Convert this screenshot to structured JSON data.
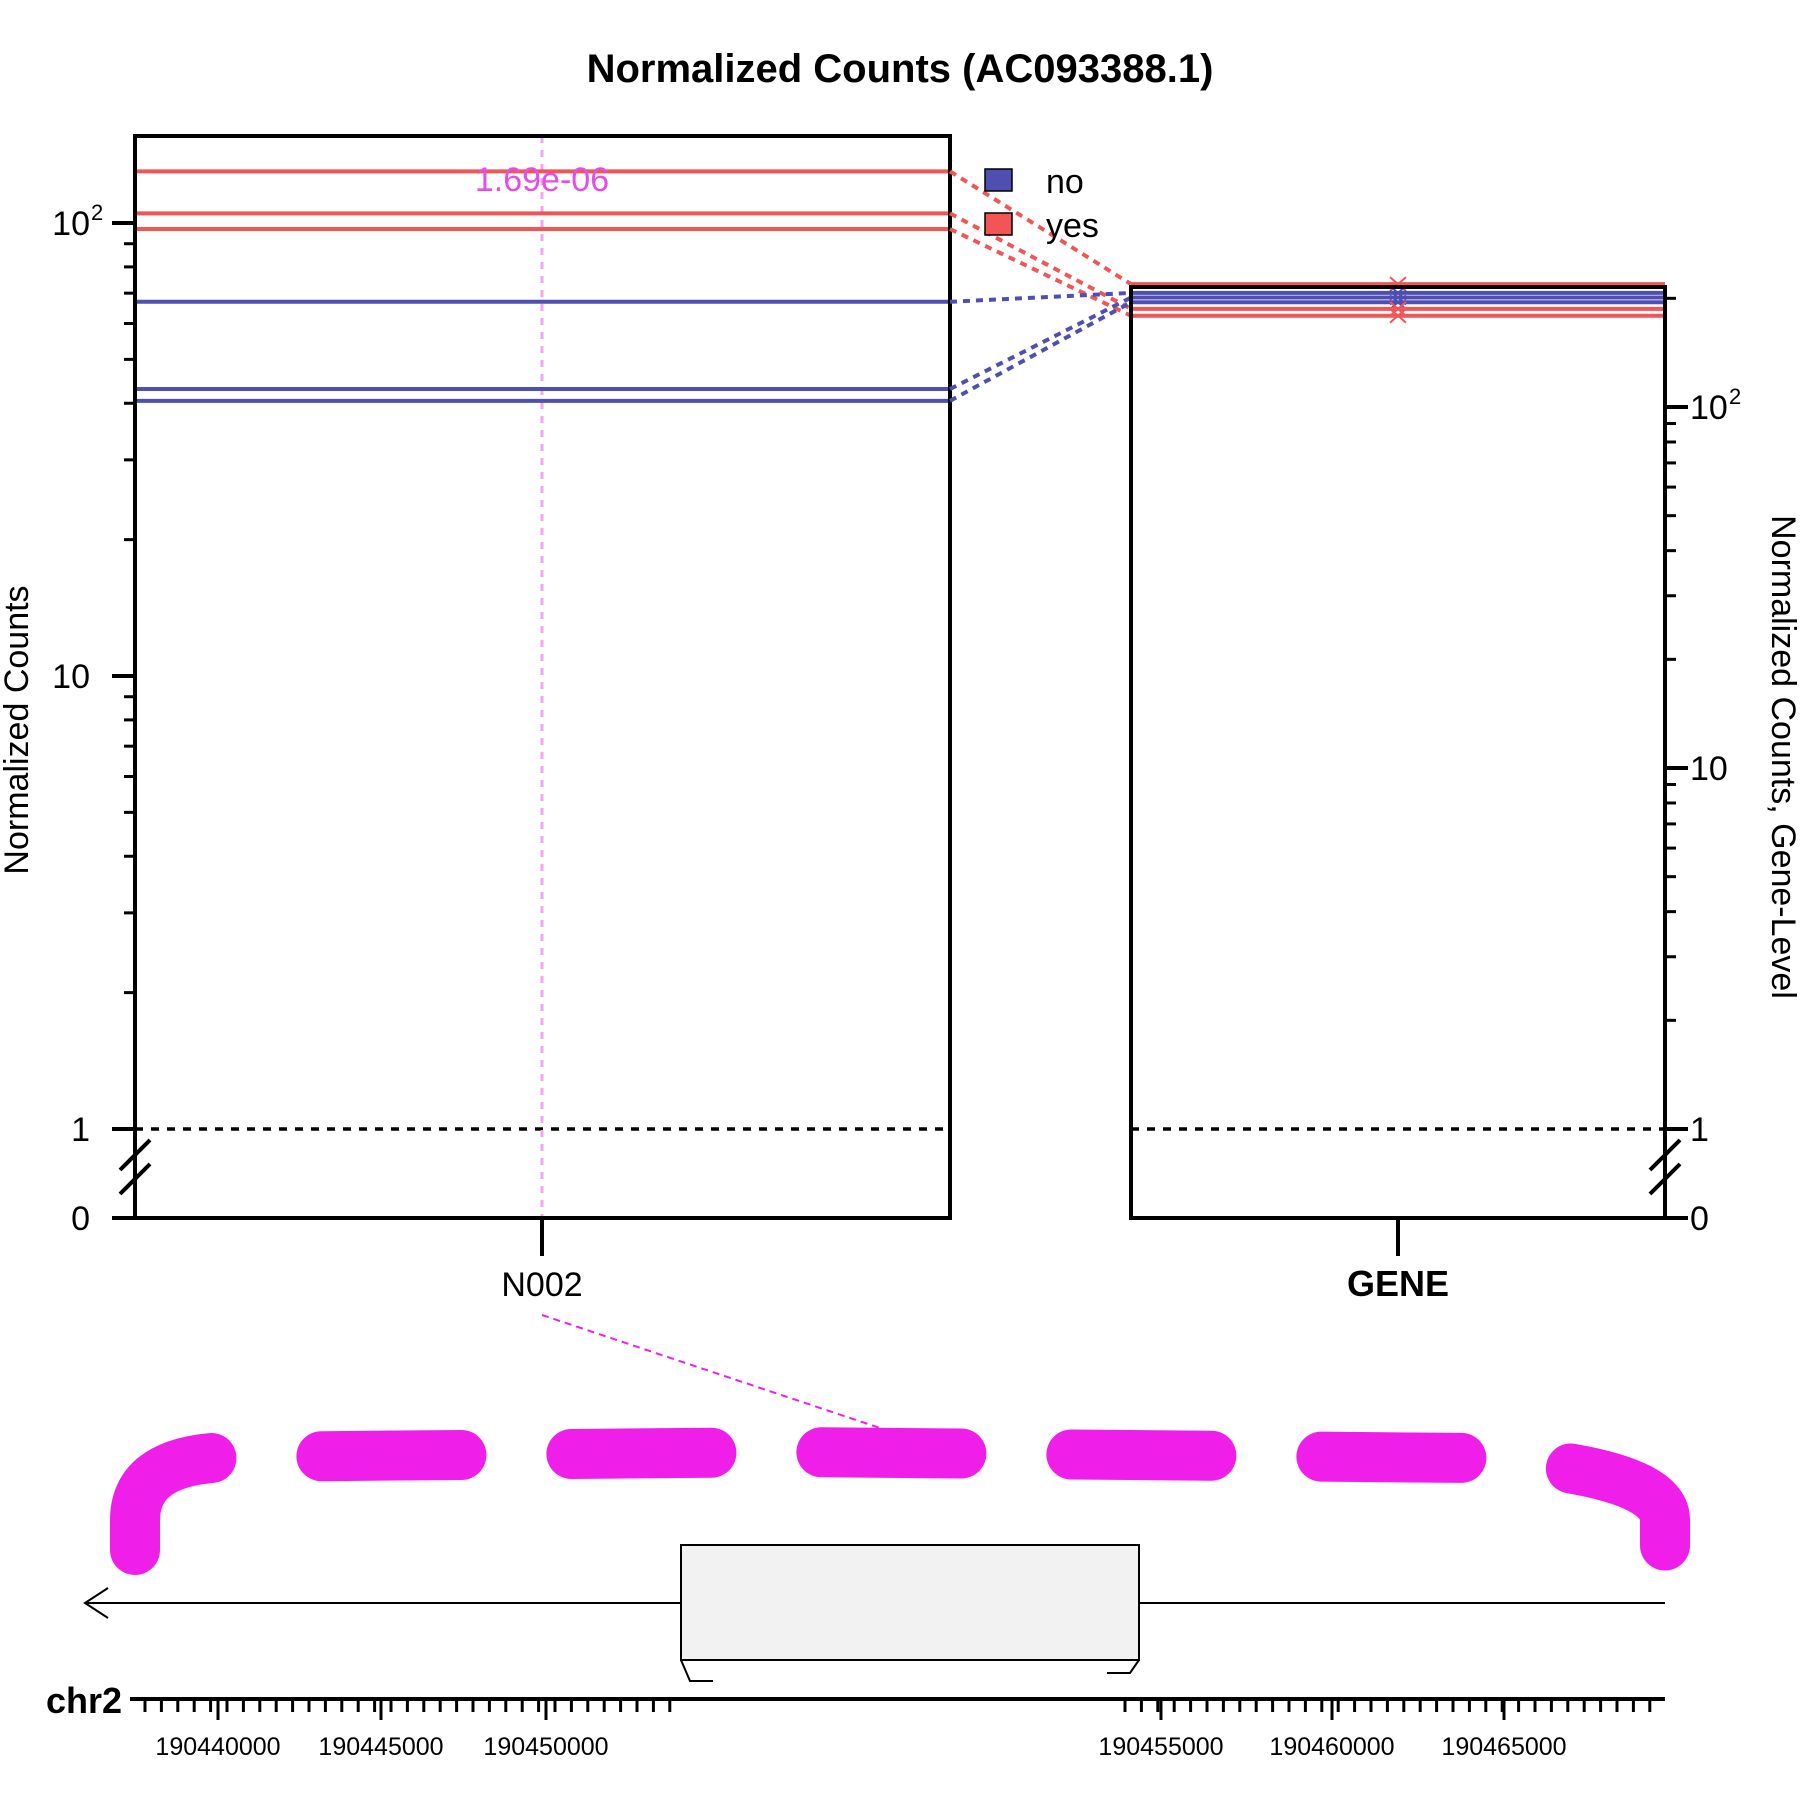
{
  "chart_data": {
    "type": "line",
    "title": "Normalized Counts (AC093388.1)",
    "panels": [
      {
        "name": "junction",
        "ylabel": "Normalized Counts",
        "y_scale": "log",
        "ylim": [
          0,
          170
        ],
        "y_ticks": [
          {
            "value": 0,
            "label": "0"
          },
          {
            "value": 1,
            "label": "1"
          },
          {
            "value": 10,
            "label": "10"
          },
          {
            "value": 100,
            "label": "10",
            "sup": "2"
          }
        ],
        "categories": [
          "N002"
        ],
        "annotation": "1.69e-06",
        "series": [
          {
            "group": "yes",
            "value": 130
          },
          {
            "group": "yes",
            "value": 105
          },
          {
            "group": "yes",
            "value": 97
          },
          {
            "group": "no",
            "value": 67
          },
          {
            "group": "no",
            "value": 43
          },
          {
            "group": "no",
            "value": 40.5
          }
        ]
      },
      {
        "name": "gene",
        "ylabel": "Normalized Counts, Gene-Level",
        "y_scale": "log",
        "ylim": [
          0,
          290
        ],
        "y_ticks": [
          {
            "value": 0,
            "label": "0"
          },
          {
            "value": 1,
            "label": "1"
          },
          {
            "value": 10,
            "label": "10"
          },
          {
            "value": 100,
            "label": "10",
            "sup": "2"
          }
        ],
        "categories": [
          "GENE"
        ],
        "series": [
          {
            "group": "yes",
            "value": 219
          },
          {
            "group": "no",
            "value": 207
          },
          {
            "group": "no",
            "value": 201
          },
          {
            "group": "no",
            "value": 195
          },
          {
            "group": "yes",
            "value": 187
          },
          {
            "group": "yes",
            "value": 179
          }
        ]
      }
    ],
    "legend": {
      "placement": "top-center",
      "entries": [
        {
          "label": "no",
          "color": "#4f4fb2"
        },
        {
          "label": "yes",
          "color": "#f25555"
        }
      ]
    },
    "colors": {
      "no": "#4f4fb2",
      "yes": "#f25555",
      "annotation": "#e64ce6",
      "junction_arc": "#f01ee9"
    },
    "genome_track": {
      "chromosome": "chr2",
      "strand": "-",
      "ticks": [
        {
          "value": 190440000,
          "label": "190440000"
        },
        {
          "value": 190445000,
          "label": "190445000"
        },
        {
          "value": 190450000,
          "label": "190450000"
        },
        {
          "value": 190455000,
          "label": "190455000"
        },
        {
          "value": 190460000,
          "label": "190460000"
        },
        {
          "value": 190465000,
          "label": "190465000"
        }
      ]
    }
  }
}
